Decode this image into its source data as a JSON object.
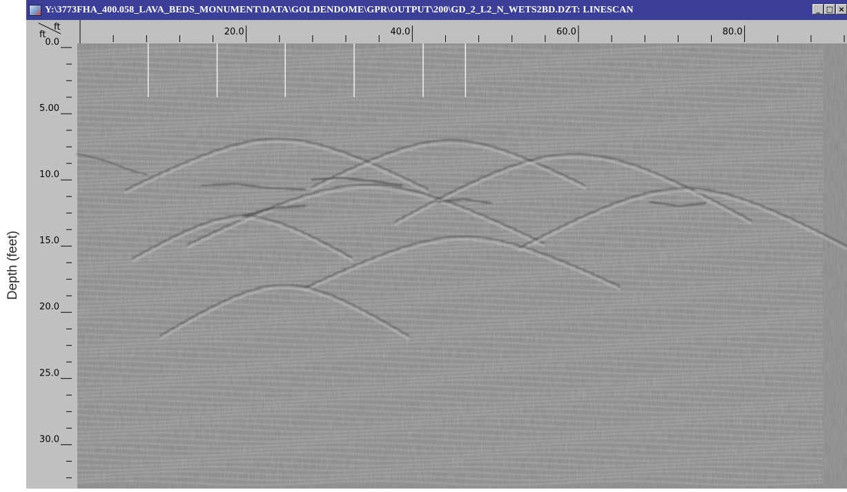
{
  "window": {
    "title": "Y:\\3773FHA_400.058_LAVA_BEDS_MONUMENT\\DATA\\GOLDENDOME\\GPR\\OUTPUT\\200\\GD_2_L2_N_WETS2BD.DZT: LINESCAN",
    "controls": [
      "_",
      "□",
      "×"
    ]
  },
  "corner_units": {
    "horizontal": "ft",
    "vertical": "ft"
  },
  "y_axis_label": "Depth (feet)",
  "horizontal_ruler": {
    "labels": [
      "20.0",
      "40.0",
      "60.0",
      "80.0"
    ],
    "label_values": [
      20,
      40,
      60,
      80
    ],
    "min": 0,
    "max": 92
  },
  "vertical_ruler": {
    "labels": [
      "0.0",
      "5.00",
      "10.0",
      "15.0",
      "20.0",
      "25.0",
      "30.0"
    ],
    "label_values": [
      0,
      5,
      10,
      15,
      20,
      25,
      30
    ],
    "min": 0,
    "max": 33
  },
  "colors": {
    "titlebar": "#3b3f97",
    "scan_background": "#8c8c8c",
    "window_frame": "#c0c0c0"
  },
  "marker_lines_ft": [
    8.2,
    16.5,
    24.7,
    33,
    41.3,
    46.4
  ]
}
